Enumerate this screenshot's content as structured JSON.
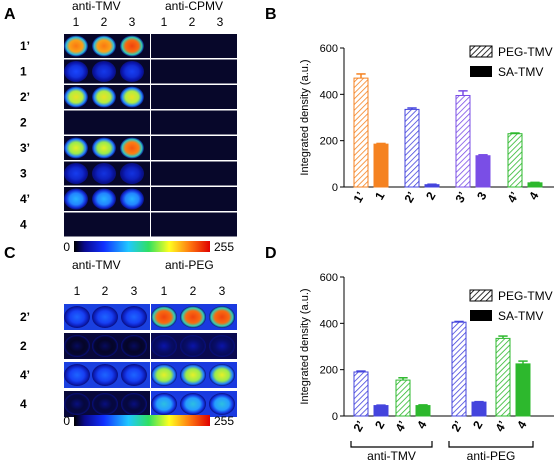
{
  "panels": {
    "A": {
      "letter": "A",
      "groups": [
        "anti-TMV",
        "anti-CPMV"
      ],
      "cols": [
        "1",
        "2",
        "3"
      ],
      "rows": [
        "1’",
        "1",
        "2’",
        "2",
        "3’",
        "3",
        "4’",
        "4"
      ],
      "intensity_left": [
        [
          0.85,
          0.85,
          0.93
        ],
        [
          0.28,
          0.24,
          0.26
        ],
        [
          0.7,
          0.7,
          0.7
        ],
        [
          0.02,
          0.02,
          0.02
        ],
        [
          0.68,
          0.68,
          0.9
        ],
        [
          0.25,
          0.22,
          0.22
        ],
        [
          0.42,
          0.42,
          0.42
        ],
        [
          0.02,
          0.02,
          0.02
        ]
      ],
      "scale_min": "0",
      "scale_max": "255"
    },
    "C": {
      "letter": "C",
      "groups": [
        "anti-TMV",
        "anti-PEG"
      ],
      "cols": [
        "1",
        "2",
        "3"
      ],
      "rows": [
        "2’",
        "2",
        "4’",
        "4"
      ],
      "intensity_left": [
        [
          0.32,
          0.32,
          0.32
        ],
        [
          0.05,
          0.05,
          0.05
        ],
        [
          0.32,
          0.32,
          0.32
        ],
        [
          0.08,
          0.08,
          0.08
        ]
      ],
      "intensity_right": [
        [
          0.93,
          0.93,
          0.93
        ],
        [
          0.12,
          0.12,
          0.12
        ],
        [
          0.68,
          0.68,
          0.68
        ],
        [
          0.45,
          0.45,
          0.45
        ]
      ],
      "scale_min": "0",
      "scale_max": "255"
    }
  },
  "chart_data": [
    {
      "panel": "B",
      "type": "bar",
      "ylabel": "Integrated density (a.u.)",
      "ylim": [
        0,
        600
      ],
      "yticks": [
        "0",
        "200",
        "400",
        "600"
      ],
      "legend": [
        "PEG-TMV",
        "SA-TMV"
      ],
      "legend_position": "top-right",
      "categories": [
        "1’",
        "1",
        "2’",
        "2",
        "3’",
        "3",
        "4’",
        "4"
      ],
      "values": [
        470,
        185,
        335,
        10,
        395,
        135,
        230,
        18
      ],
      "errors": [
        18,
        3,
        6,
        2,
        20,
        4,
        3,
        2
      ],
      "colors": [
        "#f58220",
        "#f58220",
        "#4444dd",
        "#4444dd",
        "#7a4ee6",
        "#7a4ee6",
        "#2db82d",
        "#2db82d"
      ],
      "hatched": [
        true,
        false,
        true,
        false,
        true,
        false,
        true,
        false
      ]
    },
    {
      "panel": "D",
      "type": "bar",
      "ylabel": "Integrated density (a.u.)",
      "ylim": [
        0,
        600
      ],
      "yticks": [
        "0",
        "200",
        "400",
        "600"
      ],
      "legend": [
        "PEG-TMV",
        "SA-TMV"
      ],
      "legend_position": "top-right",
      "categories": [
        "2’",
        "2",
        "4’",
        "4",
        "2’",
        "2",
        "4’",
        "4"
      ],
      "groups": [
        "anti-TMV",
        "anti-PEG"
      ],
      "values": [
        190,
        45,
        155,
        45,
        405,
        60,
        335,
        225
      ],
      "errors": [
        4,
        2,
        10,
        3,
        3,
        2,
        10,
        12
      ],
      "colors": [
        "#4444dd",
        "#4444dd",
        "#2db82d",
        "#2db82d",
        "#4444dd",
        "#4444dd",
        "#2db82d",
        "#2db82d"
      ],
      "hatched": [
        true,
        false,
        true,
        false,
        true,
        false,
        true,
        false
      ]
    }
  ]
}
